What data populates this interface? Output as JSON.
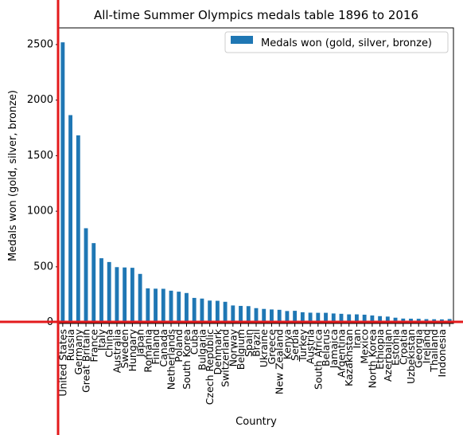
{
  "chart_data": {
    "type": "bar",
    "title": "All-time Summer Olympics medals table 1896 to 2016",
    "xlabel": "Country",
    "ylabel": "Medals won (gold, silver, bronze)",
    "ylim": [
      -10,
      2650
    ],
    "yticks": [
      0,
      500,
      1000,
      1500,
      2000,
      2500
    ],
    "grid": false,
    "legend_placement": "top-right",
    "bar_color": "#1f77b4",
    "overlay_line_color": "#e31a1c",
    "series": [
      {
        "name": "Medals won (gold, silver, bronze)",
        "values": [
          2520,
          1865,
          1683,
          847,
          713,
          577,
          543,
          497,
          494,
          491,
          436,
          306,
          303,
          302,
          285,
          276,
          264,
          220,
          214,
          196,
          194,
          185,
          152,
          148,
          146,
          128,
          121,
          116,
          113,
          102,
          104,
          91,
          87,
          86,
          86,
          80,
          77,
          72,
          72,
          69,
          62,
          56,
          52,
          42,
          34,
          33,
          32,
          29,
          28,
          27,
          30
        ]
      }
    ],
    "categories": [
      "United States",
      "Russia",
      "Germany",
      "Great Britain",
      "France",
      "Italy",
      "China",
      "Australia",
      "Sweden",
      "Hungary",
      "Japan",
      "Romania",
      "Finland",
      "Canada",
      "Netherlands",
      "Poland",
      "South Korea",
      "Cuba",
      "Bulgaria",
      "Czech Republic",
      "Denmark",
      "Switzerland",
      "Norway",
      "Belgium",
      "Spain",
      "Brazil",
      "Ukraine",
      "Greece",
      "New Zealand",
      "Kenya",
      "Serbia",
      "Turkey",
      "Austria",
      "South Africa",
      "Belarus",
      "Jamaica",
      "Argentina",
      "Kazakhstan",
      "Iran",
      "Mexico",
      "North Korea",
      "Ethiopia",
      "Azerbaijan",
      "Estonia",
      "Croatia",
      "Uzbekistan",
      "Georgia",
      "Ireland",
      "Thailand",
      "Indonesia",
      ""
    ]
  }
}
